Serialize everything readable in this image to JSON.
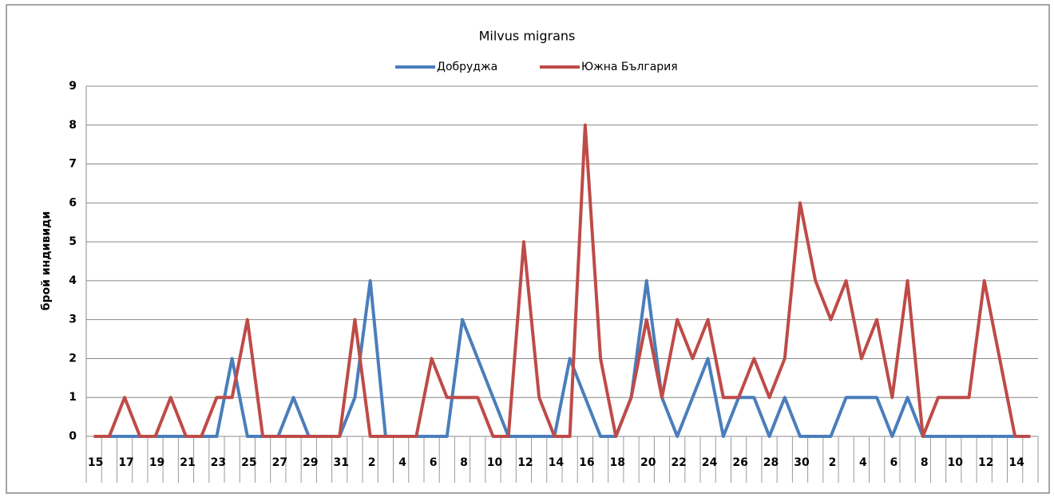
{
  "chart_data": {
    "type": "line",
    "title": "Milvus migrans",
    "y_label": "брой индивиди",
    "categories": [
      "15",
      null,
      "17",
      null,
      "19",
      null,
      "21",
      null,
      "23",
      null,
      "25",
      null,
      "27",
      null,
      "29",
      null,
      "31",
      null,
      "2",
      null,
      "4",
      null,
      "6",
      null,
      "8",
      null,
      "10",
      null,
      "12",
      null,
      "14",
      null,
      "16",
      null,
      "18",
      null,
      "20",
      null,
      "22",
      null,
      "24",
      null,
      "26",
      null,
      "28",
      null,
      "30",
      null,
      "2",
      null,
      "4",
      null,
      "6",
      null,
      "8",
      null,
      "10",
      null,
      "12",
      null,
      "14",
      null
    ],
    "series": [
      {
        "name": "Добруджа",
        "color": "#4a7ebb",
        "values": [
          0,
          0,
          0,
          0,
          0,
          0,
          0,
          0,
          0,
          2,
          0,
          0,
          0,
          1,
          0,
          0,
          0,
          1,
          4,
          0,
          0,
          0,
          0,
          0,
          3,
          2,
          1,
          0,
          0,
          0,
          0,
          2,
          1,
          0,
          0,
          1,
          4,
          1,
          0,
          1,
          2,
          0,
          1,
          1,
          0,
          1,
          0,
          0,
          0,
          1,
          1,
          1,
          0,
          1,
          0,
          0,
          0,
          0,
          0,
          0,
          0,
          0
        ]
      },
      {
        "name": "Южна България",
        "color": "#be4b48",
        "values": [
          0,
          0,
          1,
          0,
          0,
          1,
          0,
          0,
          1,
          1,
          3,
          0,
          0,
          0,
          0,
          0,
          0,
          3,
          0,
          0,
          0,
          0,
          2,
          1,
          1,
          1,
          0,
          0,
          5,
          1,
          0,
          0,
          8,
          2,
          0,
          1,
          3,
          1,
          3,
          2,
          3,
          1,
          1,
          2,
          1,
          2,
          6,
          4,
          3,
          4,
          2,
          3,
          1,
          4,
          0,
          1,
          1,
          1,
          4,
          2,
          0,
          0
        ]
      }
    ],
    "ylim": [
      0,
      9
    ],
    "yticks": [
      0,
      1,
      2,
      3,
      4,
      5,
      6,
      7,
      8,
      9
    ],
    "grid": true,
    "legend": "top"
  }
}
